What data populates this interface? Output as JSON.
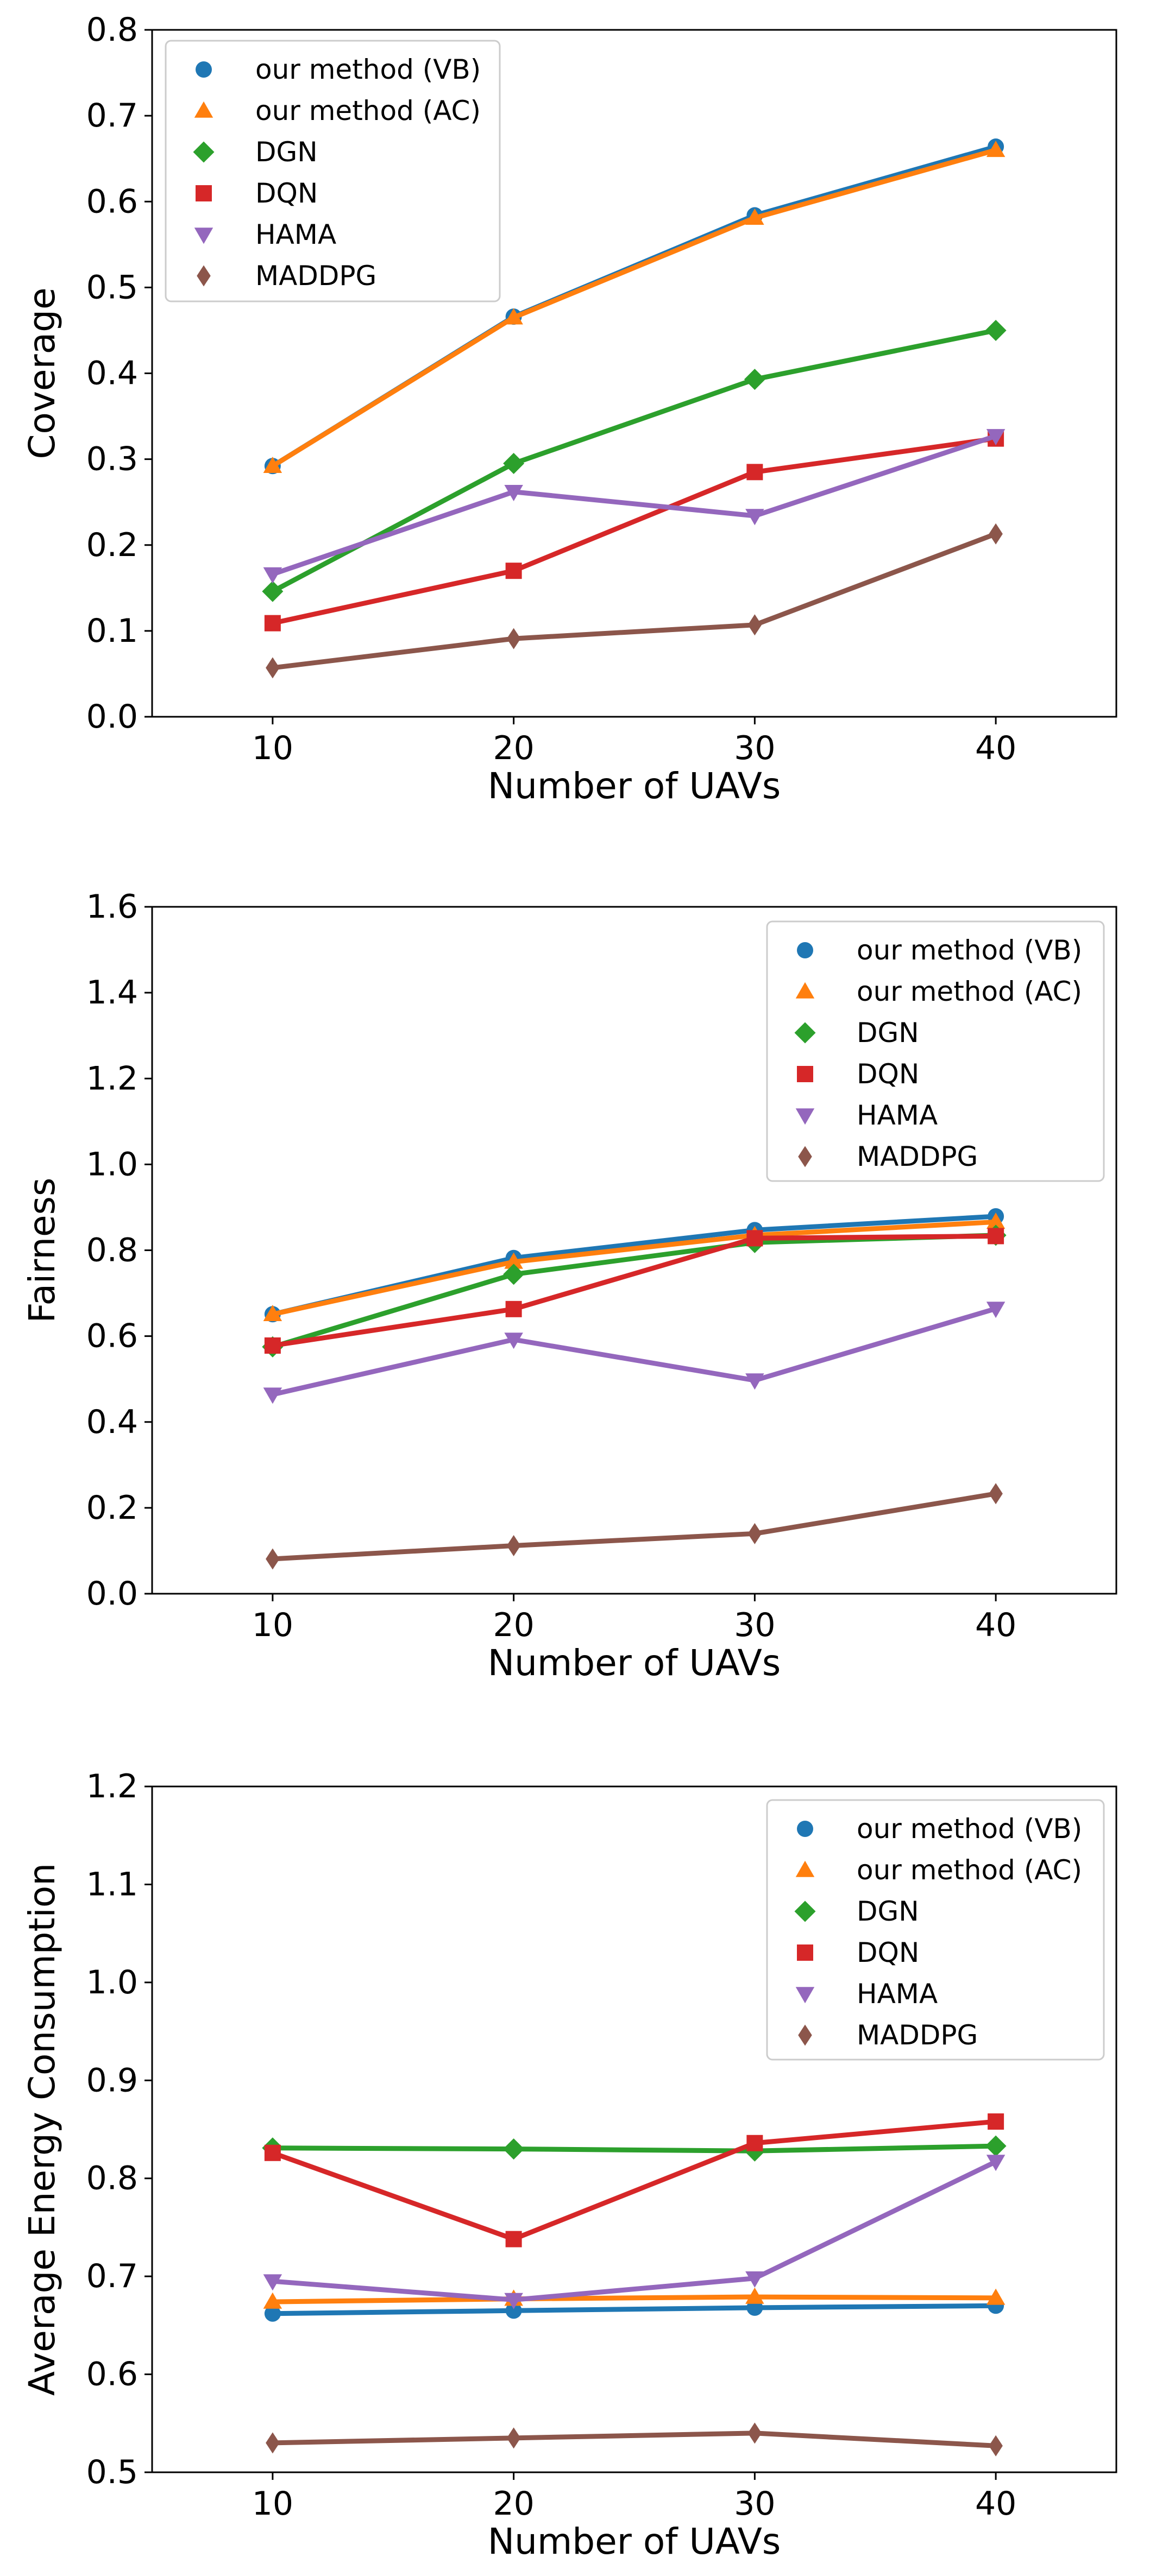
{
  "colors": {
    "vb": "#1f77b4",
    "ac": "#ff7f0e",
    "dgn": "#2ca02c",
    "dqn": "#d62728",
    "hama": "#9467bd",
    "maddpg": "#8c564b"
  },
  "chart_data": [
    {
      "type": "line",
      "title": "",
      "xlabel": "Number of UAVs",
      "ylabel": "Coverage",
      "x": [
        10,
        20,
        30,
        40
      ],
      "x_ticks": [
        "10",
        "20",
        "30",
        "40"
      ],
      "xlim": [
        5,
        45
      ],
      "ylim": [
        0,
        0.8
      ],
      "y_ticks": [
        "0.0",
        "0.1",
        "0.2",
        "0.3",
        "0.4",
        "0.5",
        "0.6",
        "0.7",
        "0.8"
      ],
      "grid": false,
      "legend_position": "upper left",
      "series": [
        {
          "name": "our method (VB)",
          "key": "vb",
          "marker": "circle",
          "values": [
            0.292,
            0.466,
            0.584,
            0.664
          ]
        },
        {
          "name": "our method (AC)",
          "key": "ac",
          "marker": "triangle-up",
          "values": [
            0.292,
            0.465,
            0.581,
            0.66
          ]
        },
        {
          "name": "DGN",
          "key": "dgn",
          "marker": "diamond",
          "values": [
            0.146,
            0.295,
            0.393,
            0.45
          ]
        },
        {
          "name": "DQN",
          "key": "dqn",
          "marker": "square",
          "values": [
            0.109,
            0.17,
            0.285,
            0.324
          ]
        },
        {
          "name": "HAMA",
          "key": "hama",
          "marker": "triangle-down",
          "values": [
            0.166,
            0.262,
            0.234,
            0.327
          ]
        },
        {
          "name": "MADDPG",
          "key": "maddpg",
          "marker": "thin-diamond",
          "values": [
            0.057,
            0.091,
            0.107,
            0.213
          ]
        }
      ]
    },
    {
      "type": "line",
      "title": "",
      "xlabel": "Number of UAVs",
      "ylabel": "Fairness",
      "x": [
        10,
        20,
        30,
        40
      ],
      "x_ticks": [
        "10",
        "20",
        "30",
        "40"
      ],
      "xlim": [
        5,
        45
      ],
      "ylim": [
        0,
        1.6
      ],
      "y_ticks": [
        "0.0",
        "0.2",
        "0.4",
        "0.6",
        "0.8",
        "1.0",
        "1.2",
        "1.4",
        "1.6"
      ],
      "grid": false,
      "legend_position": "upper right",
      "series": [
        {
          "name": "our method (VB)",
          "key": "vb",
          "marker": "circle",
          "values": [
            0.651,
            0.782,
            0.847,
            0.879
          ]
        },
        {
          "name": "our method (AC)",
          "key": "ac",
          "marker": "triangle-up",
          "values": [
            0.651,
            0.773,
            0.835,
            0.866
          ]
        },
        {
          "name": "DGN",
          "key": "dgn",
          "marker": "diamond",
          "values": [
            0.575,
            0.744,
            0.818,
            0.835
          ]
        },
        {
          "name": "DQN",
          "key": "dqn",
          "marker": "square",
          "values": [
            0.578,
            0.663,
            0.828,
            0.833
          ]
        },
        {
          "name": "HAMA",
          "key": "hama",
          "marker": "triangle-down",
          "values": [
            0.464,
            0.592,
            0.497,
            0.664
          ]
        },
        {
          "name": "MADDPG",
          "key": "maddpg",
          "marker": "thin-diamond",
          "values": [
            0.081,
            0.112,
            0.14,
            0.233
          ]
        }
      ]
    },
    {
      "type": "line",
      "title": "",
      "xlabel": "Number of UAVs",
      "ylabel": "Average Energy Consumption",
      "x": [
        10,
        20,
        30,
        40
      ],
      "x_ticks": [
        "10",
        "20",
        "30",
        "40"
      ],
      "xlim": [
        5,
        45
      ],
      "ylim": [
        0.5,
        1.2
      ],
      "y_ticks": [
        "0.5",
        "0.6",
        "0.7",
        "0.8",
        "0.9",
        "1.0",
        "1.1",
        "1.2"
      ],
      "grid": false,
      "legend_position": "upper right",
      "series": [
        {
          "name": "our method (VB)",
          "key": "vb",
          "marker": "circle",
          "values": [
            0.662,
            0.665,
            0.668,
            0.67
          ]
        },
        {
          "name": "our method (AC)",
          "key": "ac",
          "marker": "triangle-up",
          "values": [
            0.674,
            0.677,
            0.679,
            0.678
          ]
        },
        {
          "name": "DGN",
          "key": "dgn",
          "marker": "diamond",
          "values": [
            0.831,
            0.83,
            0.828,
            0.833
          ]
        },
        {
          "name": "DQN",
          "key": "dqn",
          "marker": "square",
          "values": [
            0.826,
            0.738,
            0.836,
            0.858
          ]
        },
        {
          "name": "HAMA",
          "key": "hama",
          "marker": "triangle-down",
          "values": [
            0.695,
            0.676,
            0.698,
            0.817
          ]
        },
        {
          "name": "MADDPG",
          "key": "maddpg",
          "marker": "thin-diamond",
          "values": [
            0.53,
            0.535,
            0.54,
            0.527
          ]
        }
      ]
    }
  ]
}
